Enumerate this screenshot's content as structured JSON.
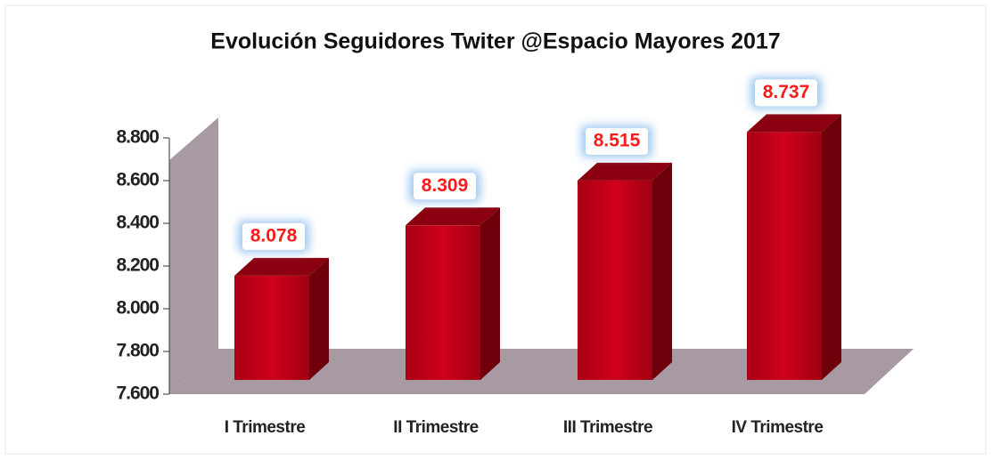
{
  "chart_data": {
    "type": "bar3d",
    "title": "Evolución Seguidores Twiter @Espacio Mayores 2017",
    "categories": [
      "I Trimestre",
      "II Trimestre",
      "III Trimestre",
      "IV Trimestre"
    ],
    "values": [
      8078,
      8309,
      8515,
      8737
    ],
    "value_labels": [
      "8.078",
      "8.309",
      "8.515",
      "8.737"
    ],
    "color": "#c00018",
    "ylim": [
      7600,
      8800
    ],
    "yticks": [
      {
        "value": 7600,
        "label": "7.600"
      },
      {
        "value": 7800,
        "label": "7.800"
      },
      {
        "value": 8000,
        "label": "8.000"
      },
      {
        "value": 8200,
        "label": "8.200"
      },
      {
        "value": 8400,
        "label": "8.400"
      },
      {
        "value": 8600,
        "label": "8.600"
      },
      {
        "value": 8800,
        "label": "8.800"
      }
    ]
  }
}
